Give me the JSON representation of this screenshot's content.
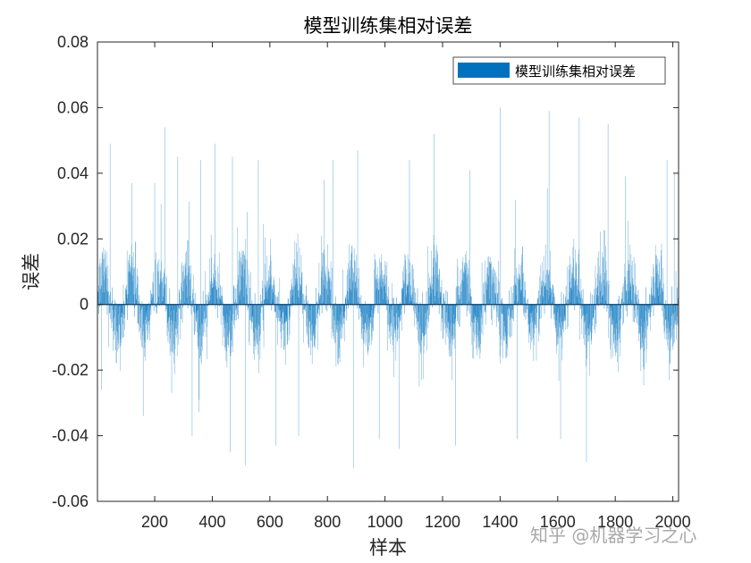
{
  "chart_data": {
    "type": "bar",
    "title": "模型训练集相对误差",
    "xlabel": "样本",
    "ylabel": "误差",
    "xlim": [
      1,
      2020
    ],
    "ylim": [
      -0.06,
      0.08
    ],
    "xticks": [
      200,
      400,
      600,
      800,
      1000,
      1200,
      1400,
      1600,
      1800,
      2000
    ],
    "yticks": [
      -0.06,
      -0.04,
      -0.02,
      0,
      0.02,
      0.04,
      0.06,
      0.08
    ],
    "ytick_labels": [
      "-0.06",
      "-0.04",
      "-0.02",
      "0",
      "0.02",
      "0.04",
      "0.06",
      "0.08"
    ],
    "legend": {
      "label": "模型训练集相对误差",
      "location": "top-right",
      "color": "#0072BD"
    },
    "bar_color": "#0072BD",
    "sample_count": 2020,
    "peak_errors": [
      {
        "x": 15,
        "y": -0.026
      },
      {
        "x": 45,
        "y": 0.049
      },
      {
        "x": 120,
        "y": 0.037
      },
      {
        "x": 160,
        "y": -0.034
      },
      {
        "x": 200,
        "y": 0.037
      },
      {
        "x": 235,
        "y": 0.054
      },
      {
        "x": 280,
        "y": 0.045
      },
      {
        "x": 330,
        "y": -0.04
      },
      {
        "x": 360,
        "y": 0.044
      },
      {
        "x": 410,
        "y": 0.049
      },
      {
        "x": 470,
        "y": 0.045
      },
      {
        "x": 515,
        "y": -0.049
      },
      {
        "x": 560,
        "y": 0.044
      },
      {
        "x": 620,
        "y": -0.043
      },
      {
        "x": 700,
        "y": -0.04
      },
      {
        "x": 820,
        "y": 0.044
      },
      {
        "x": 890,
        "y": -0.05
      },
      {
        "x": 905,
        "y": 0.047
      },
      {
        "x": 980,
        "y": -0.041
      },
      {
        "x": 1050,
        "y": -0.044
      },
      {
        "x": 1085,
        "y": 0.044
      },
      {
        "x": 1170,
        "y": 0.052
      },
      {
        "x": 1245,
        "y": -0.043
      },
      {
        "x": 1295,
        "y": 0.041
      },
      {
        "x": 1400,
        "y": 0.06
      },
      {
        "x": 1460,
        "y": -0.041
      },
      {
        "x": 1570,
        "y": 0.059
      },
      {
        "x": 1610,
        "y": -0.041
      },
      {
        "x": 1675,
        "y": 0.057
      },
      {
        "x": 1700,
        "y": -0.048
      },
      {
        "x": 1775,
        "y": 0.055
      },
      {
        "x": 1835,
        "y": 0.039
      },
      {
        "x": 1980,
        "y": 0.044
      },
      {
        "x": 2005,
        "y": 0.04
      }
    ]
  },
  "watermark": "知乎 @机器学习之心"
}
